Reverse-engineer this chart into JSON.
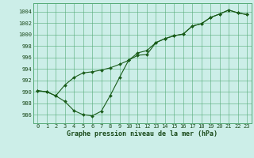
{
  "title": "Graphe pression niveau de la mer (hPa)",
  "xlabel_ticks": [
    0,
    1,
    2,
    3,
    4,
    5,
    6,
    7,
    8,
    9,
    10,
    11,
    12,
    13,
    14,
    15,
    16,
    17,
    18,
    19,
    20,
    21,
    22,
    23
  ],
  "yticks": [
    986,
    988,
    990,
    992,
    994,
    996,
    998,
    1000,
    1002,
    1004
  ],
  "ylim": [
    984.5,
    1005.5
  ],
  "xlim": [
    -0.5,
    23.5
  ],
  "background_color": "#cceee8",
  "grid_color": "#55aa77",
  "line_color": "#1a5c1a",
  "line1_x": [
    0,
    1,
    2,
    3,
    4,
    5,
    6,
    7,
    8,
    9,
    10,
    11,
    12,
    13,
    14,
    15,
    16,
    17,
    18,
    19,
    20,
    21,
    22,
    23
  ],
  "line1_y": [
    990.2,
    990.0,
    989.3,
    988.3,
    986.7,
    986.0,
    985.8,
    986.6,
    989.4,
    992.5,
    995.5,
    996.4,
    996.5,
    998.6,
    999.3,
    999.8,
    1000.1,
    1001.5,
    1001.9,
    1003.0,
    1003.6,
    1004.3,
    1003.8,
    1003.5
  ],
  "line2_x": [
    0,
    1,
    2,
    3,
    4,
    5,
    6,
    7,
    8,
    9,
    10,
    11,
    12,
    13,
    14,
    15,
    16,
    17,
    18,
    19,
    20,
    21,
    22,
    23
  ],
  "line2_y": [
    990.2,
    990.0,
    989.3,
    991.2,
    992.5,
    993.3,
    993.5,
    993.8,
    994.2,
    994.8,
    995.5,
    996.8,
    997.2,
    998.6,
    999.3,
    999.8,
    1000.1,
    1001.5,
    1001.9,
    1003.0,
    1003.6,
    1004.3,
    1003.8,
    1003.5
  ],
  "title_fontsize": 6.0,
  "tick_fontsize": 5.0
}
